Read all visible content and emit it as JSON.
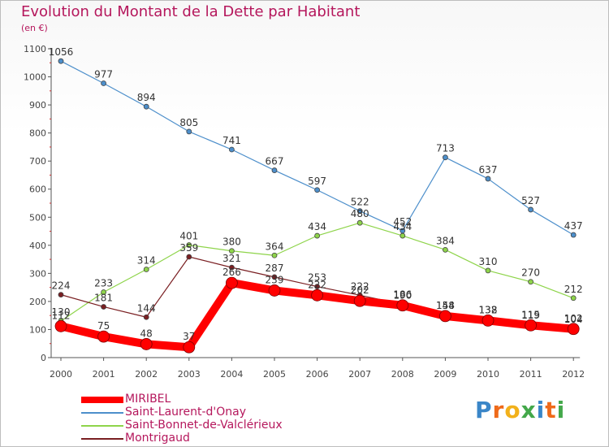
{
  "title": "Evolution du Montant de la Dette par Habitant",
  "unit_label": "(en €)",
  "logo": {
    "text": "Proxiti",
    "colors": [
      "#3a86c8",
      "#ef6a1a",
      "#f2b11b",
      "#43a84a",
      "#3a86c8",
      "#ef6a1a",
      "#43a84a"
    ]
  },
  "chart_data": {
    "type": "line",
    "x": [
      "2000",
      "2001",
      "2002",
      "2003",
      "2004",
      "2005",
      "2006",
      "2007",
      "2008",
      "2009",
      "2010",
      "2011",
      "2012"
    ],
    "ylim": [
      0,
      1100
    ],
    "yticks": [
      0,
      100,
      200,
      300,
      400,
      500,
      600,
      700,
      800,
      900,
      1000,
      1100
    ],
    "grid": false,
    "legend_position": "bottom-left",
    "series": [
      {
        "name": "MIRIBEL",
        "color": "#ff0000",
        "values": [
          112,
          75,
          48,
          37,
          266,
          239,
          222,
          202,
          186,
          148,
          132,
          115,
          102
        ]
      },
      {
        "name": "Saint-Laurent-d'Onay",
        "color": "#4d8fcb",
        "values": [
          1056,
          977,
          894,
          805,
          741,
          667,
          597,
          522,
          452,
          713,
          637,
          527,
          437
        ]
      },
      {
        "name": "Saint-Bonnet-de-Valclérieux",
        "color": "#8ed44a",
        "values": [
          130,
          233,
          314,
          401,
          380,
          364,
          434,
          480,
          434,
          384,
          310,
          270,
          212
        ]
      },
      {
        "name": "Montrigaud",
        "color": "#7a1f22",
        "values": [
          224,
          181,
          144,
          359,
          321,
          287,
          253,
          222,
          190,
          154,
          138,
          119,
          104
        ]
      }
    ]
  }
}
